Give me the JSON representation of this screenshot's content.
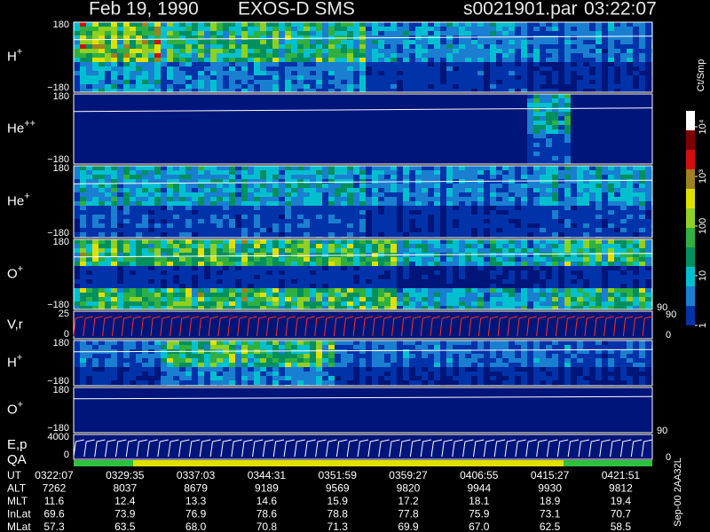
{
  "header": {
    "date": "Feb 19, 1990",
    "instrument": "EXOS-D SMS",
    "file": "s0021901.par",
    "time": "03:22:07"
  },
  "panels": [
    {
      "label": "H",
      "superscript": "+",
      "top": "180",
      "bottom": "−180"
    },
    {
      "label": "He",
      "superscript": "++",
      "top": "180",
      "bottom": "−180"
    },
    {
      "label": "He",
      "superscript": "+",
      "top": "180",
      "bottom": "−180"
    },
    {
      "label": "O",
      "superscript": "+",
      "top": "180",
      "bottom": "−180",
      "right": "90"
    },
    {
      "label": "V,r",
      "top": "25",
      "bottom": "0"
    },
    {
      "label": "H",
      "superscript": "+",
      "top": "180",
      "bottom": "−180"
    },
    {
      "label": "O",
      "superscript": "+",
      "top": "180",
      "bottom": "−180",
      "right": "90"
    },
    {
      "label": "E,p",
      "top": "4000",
      "bottom": "0"
    }
  ],
  "qa_label": "QA",
  "right_axis": {
    "top": "90",
    "bottom": "0"
  },
  "colorbar": {
    "unit": "Ct/Smp",
    "ticks": [
      {
        "value": 1,
        "label": "1"
      },
      {
        "value": 10,
        "label": "10"
      },
      {
        "value": 100,
        "label": "100"
      },
      {
        "value": 1000,
        "label": "10³"
      },
      {
        "value": 10000,
        "label": "10⁴"
      }
    ]
  },
  "side_note": "Sep-00  2AA32L",
  "table": {
    "rows": [
      {
        "label": "UT",
        "values": [
          "0322:07",
          "0329:35",
          "0337:03",
          "0344:31",
          "0351:59",
          "0359:27",
          "0406:55",
          "0415:27",
          "0421:51"
        ]
      },
      {
        "label": "ALT",
        "values": [
          "7262",
          "8037",
          "8679",
          "9189",
          "9569",
          "9820",
          "9944",
          "9930",
          "9812"
        ]
      },
      {
        "label": "MLT",
        "values": [
          "11.6",
          "12.4",
          "13.3",
          "14.6",
          "15.9",
          "17.2",
          "18.1",
          "18.9",
          "19.4"
        ]
      },
      {
        "label": "InLat",
        "values": [
          "69.6",
          "73.9",
          "76.9",
          "78.6",
          "78.8",
          "77.8",
          "75.9",
          "73.1",
          "70.7"
        ]
      },
      {
        "label": "MLat",
        "values": [
          "57.3",
          "63.5",
          "68.0",
          "70.8",
          "71.3",
          "69.9",
          "67.0",
          "62.5",
          "58.5"
        ]
      }
    ]
  }
}
